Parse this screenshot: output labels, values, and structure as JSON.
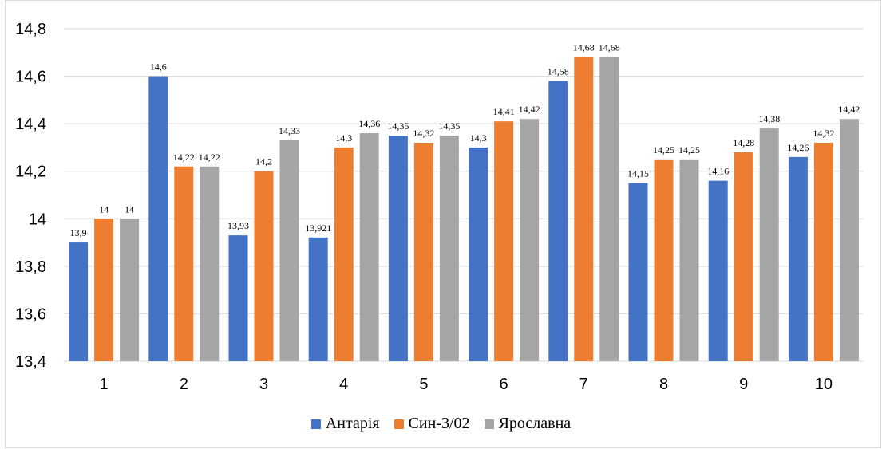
{
  "chart_data": {
    "type": "bar",
    "categories": [
      "1",
      "2",
      "3",
      "4",
      "5",
      "6",
      "7",
      "8",
      "9",
      "10"
    ],
    "series": [
      {
        "name": "Антарія",
        "color": "#4472C4",
        "values": [
          13.9,
          14.6,
          13.93,
          13.921,
          14.35,
          14.3,
          14.58,
          14.15,
          14.16,
          14.26
        ],
        "labels": [
          "13,9",
          "14,6",
          "13,93",
          "13,921",
          "14,35",
          "14,3",
          "14,58",
          "14,15",
          "14,16",
          "14,26"
        ]
      },
      {
        "name": "Син-3/02",
        "color": "#ED7D31",
        "values": [
          14.0,
          14.22,
          14.2,
          14.3,
          14.32,
          14.41,
          14.68,
          14.25,
          14.28,
          14.32
        ],
        "labels": [
          "14",
          "14,22",
          "14,2",
          "14,3",
          "14,32",
          "14,41",
          "14,68",
          "14,25",
          "14,28",
          "14,32"
        ]
      },
      {
        "name": "Ярославна",
        "color": "#A5A5A5",
        "values": [
          14.0,
          14.22,
          14.33,
          14.36,
          14.35,
          14.42,
          14.68,
          14.25,
          14.38,
          14.42
        ],
        "labels": [
          "14",
          "14,22",
          "14,33",
          "14,36",
          "14,35",
          "14,42",
          "14,68",
          "14,25",
          "14,38",
          "14,42"
        ]
      }
    ],
    "ylim": [
      13.4,
      14.8
    ],
    "yticks": [
      "13,4",
      "13,6",
      "13,8",
      "14",
      "14,2",
      "14,4",
      "14,6",
      "14,8"
    ],
    "grid": true,
    "legend_position": "bottom"
  }
}
